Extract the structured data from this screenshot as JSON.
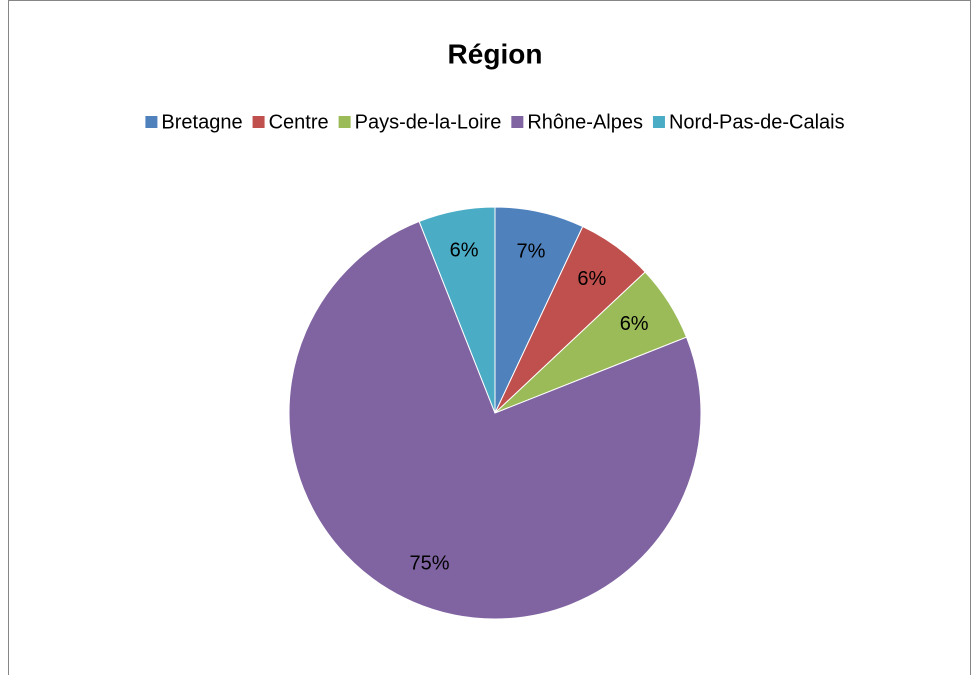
{
  "chart_data": {
    "type": "pie",
    "title": "Région",
    "categories": [
      "Bretagne",
      "Centre",
      "Pays-de-la-Loire",
      "Rhône-Alpes",
      "Nord-Pas-de-Calais"
    ],
    "values": [
      7,
      6,
      6,
      75,
      6
    ],
    "value_labels": [
      "7%",
      "6%",
      "6%",
      "75%",
      "6%"
    ],
    "colors": [
      "#4f81bd",
      "#c0504d",
      "#9bbb59",
      "#8064a2",
      "#4bacc6"
    ],
    "legend": "top"
  }
}
